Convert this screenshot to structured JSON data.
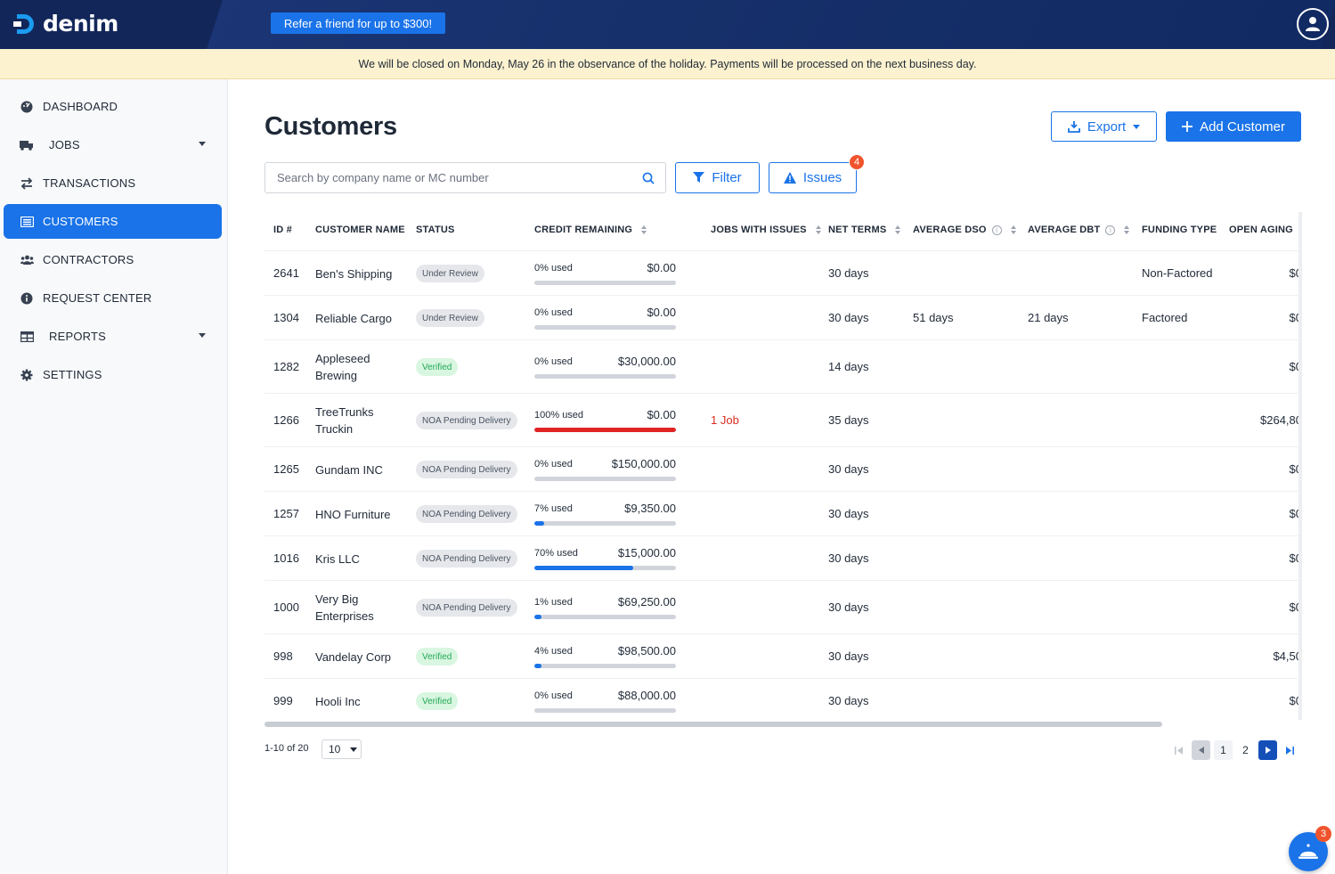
{
  "app": {
    "brand": "denim",
    "refer_label": "Refer a friend for up to $300!"
  },
  "banner": {
    "message": "We will be closed on Monday, May 26 in the observance of the holiday. Payments will be processed on the next business day."
  },
  "sidebar": {
    "items": [
      {
        "label": "DASHBOARD",
        "icon": "dashboard-icon"
      },
      {
        "label": "JOBS",
        "icon": "truck-icon",
        "expandable": true
      },
      {
        "label": "TRANSACTIONS",
        "icon": "transfer-icon"
      },
      {
        "label": "CUSTOMERS",
        "icon": "customers-icon",
        "active": true
      },
      {
        "label": "CONTRACTORS",
        "icon": "contractors-icon"
      },
      {
        "label": "REQUEST CENTER",
        "icon": "info-icon"
      },
      {
        "label": "REPORTS",
        "icon": "table-icon",
        "expandable": true
      },
      {
        "label": "SETTINGS",
        "icon": "gear-icon"
      }
    ]
  },
  "main": {
    "title": "Customers",
    "export_label": "Export",
    "add_label": "Add Customer",
    "search_placeholder": "Search by company name or MC number",
    "filter_label": "Filter",
    "issues_label": "Issues",
    "issues_count": "4"
  },
  "table": {
    "headers": {
      "id": "ID #",
      "name": "CUSTOMER NAME",
      "status": "STATUS",
      "credit": "CREDIT REMAINING",
      "jobs": "JOBS WITH ISSUES",
      "terms": "NET TERMS",
      "dso": "AVERAGE DSO",
      "dbt": "AVERAGE DBT",
      "funding": "FUNDING TYPE",
      "aging": "OPEN AGING"
    },
    "rows": [
      {
        "id": "2641",
        "name": [
          "Ben's Shipping"
        ],
        "status": "Under Review",
        "status_kind": "review",
        "pct_label": "0% used",
        "amount": "$0.00",
        "pct": 0,
        "jobs": "",
        "terms": "30 days",
        "dso": "",
        "dbt": "",
        "funding": "Non-Factored",
        "aging": "$0"
      },
      {
        "id": "1304",
        "name": [
          "Reliable Cargo"
        ],
        "status": "Under Review",
        "status_kind": "review",
        "pct_label": "0% used",
        "amount": "$0.00",
        "pct": 0,
        "jobs": "",
        "terms": "30 days",
        "dso": "51 days",
        "dbt": "21 days",
        "funding": "Factored",
        "aging": "$0"
      },
      {
        "id": "1282",
        "name": [
          "Appleseed",
          "Brewing"
        ],
        "status": "Verified",
        "status_kind": "verified",
        "pct_label": "0% used",
        "amount": "$30,000.00",
        "pct": 0,
        "jobs": "",
        "terms": "14 days",
        "dso": "",
        "dbt": "",
        "funding": "",
        "aging": "$0"
      },
      {
        "id": "1266",
        "name": [
          "TreeTrunks",
          "Truckin"
        ],
        "status": "NOA Pending Delivery",
        "status_kind": "noa",
        "pct_label": "100% used",
        "amount": "$0.00",
        "pct": 100,
        "jobs": "1 Job",
        "terms": "35 days",
        "dso": "",
        "dbt": "",
        "funding": "",
        "aging": "$264,80"
      },
      {
        "id": "1265",
        "name": [
          "Gundam INC"
        ],
        "status": "NOA Pending Delivery",
        "status_kind": "noa",
        "pct_label": "0% used",
        "amount": "$150,000.00",
        "pct": 0,
        "jobs": "",
        "terms": "30 days",
        "dso": "",
        "dbt": "",
        "funding": "",
        "aging": "$0"
      },
      {
        "id": "1257",
        "name": [
          "HNO Furniture"
        ],
        "status": "NOA Pending Delivery",
        "status_kind": "noa",
        "pct_label": "7% used",
        "amount": "$9,350.00",
        "pct": 7,
        "jobs": "",
        "terms": "30 days",
        "dso": "",
        "dbt": "",
        "funding": "",
        "aging": "$0"
      },
      {
        "id": "1016",
        "name": [
          "Kris LLC"
        ],
        "status": "NOA Pending Delivery",
        "status_kind": "noa",
        "pct_label": "70% used",
        "amount": "$15,000.00",
        "pct": 70,
        "jobs": "",
        "terms": "30 days",
        "dso": "",
        "dbt": "",
        "funding": "",
        "aging": "$0"
      },
      {
        "id": "1000",
        "name": [
          "Very Big",
          "Enterprises"
        ],
        "status": "NOA Pending Delivery",
        "status_kind": "noa",
        "pct_label": "1% used",
        "amount": "$69,250.00",
        "pct": 1,
        "jobs": "",
        "terms": "30 days",
        "dso": "",
        "dbt": "",
        "funding": "",
        "aging": "$0"
      },
      {
        "id": "998",
        "name": [
          "Vandelay Corp"
        ],
        "status": "Verified",
        "status_kind": "verified",
        "pct_label": "4% used",
        "amount": "$98,500.00",
        "pct": 4,
        "jobs": "",
        "terms": "30 days",
        "dso": "",
        "dbt": "",
        "funding": "",
        "aging": "$4,50"
      },
      {
        "id": "999",
        "name": [
          "Hooli Inc"
        ],
        "status": "Verified",
        "status_kind": "verified",
        "pct_label": "0% used",
        "amount": "$88,000.00",
        "pct": 0,
        "jobs": "",
        "terms": "30 days",
        "dso": "",
        "dbt": "",
        "funding": "",
        "aging": "$0"
      }
    ]
  },
  "pagination": {
    "range": "1-10 of 20",
    "page_size": "10",
    "pages": [
      "1",
      "2"
    ]
  },
  "chat": {
    "badge": "3"
  },
  "colors": {
    "primary": "#1a73e8",
    "topbar": "#12265a",
    "banner": "#fdf2cf",
    "danger": "#e02424",
    "verified": "#23a857"
  }
}
